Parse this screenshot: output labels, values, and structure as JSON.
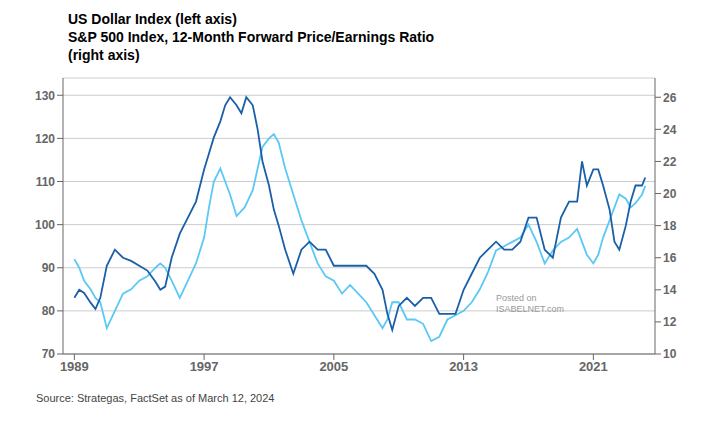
{
  "chart_data": {
    "type": "line",
    "title": [
      "US Dollar Index (left axis)",
      "S&P 500 Index, 12-Month Forward Price/Earnings Ratio",
      "(right axis)"
    ],
    "annotations": [
      "Posted on\nISABELNET.com",
      "Source: Strategas, FactSet as of March 12, 2024"
    ],
    "xlim": [
      1988.3,
      2024.8
    ],
    "xticks": [
      1989,
      1997,
      2005,
      2013,
      2021
    ],
    "ylim": [
      70,
      134
    ],
    "yticks": [
      70,
      80,
      90,
      100,
      110,
      120,
      130
    ],
    "y2lim": [
      10,
      27.2
    ],
    "y2ticks": [
      10,
      12,
      14,
      16,
      18,
      20,
      22,
      24,
      26
    ],
    "grid": true,
    "series": [
      {
        "axis": "y",
        "color": "#5bc8f5",
        "x": [
          1989.0,
          1989.3,
          1989.6,
          1990.0,
          1990.3,
          1990.6,
          1991.0,
          1991.5,
          1992.0,
          1992.5,
          1993.0,
          1993.5,
          1994.0,
          1994.3,
          1994.6,
          1995.0,
          1995.5,
          1996.0,
          1996.5,
          1997.0,
          1997.3,
          1997.6,
          1998.0,
          1998.3,
          1998.6,
          1999.0,
          1999.5,
          2000.0,
          2000.3,
          2000.6,
          2001.0,
          2001.3,
          2001.6,
          2002.0,
          2002.5,
          2003.0,
          2003.5,
          2004.0,
          2004.5,
          2005.0,
          2005.5,
          2006.0,
          2006.5,
          2007.0,
          2007.5,
          2008.0,
          2008.3,
          2008.6,
          2009.0,
          2009.5,
          2010.0,
          2010.5,
          2011.0,
          2011.5,
          2012.0,
          2012.5,
          2013.0,
          2013.5,
          2014.0,
          2014.5,
          2015.0,
          2015.5,
          2016.0,
          2016.5,
          2017.0,
          2017.5,
          2018.0,
          2018.5,
          2019.0,
          2019.5,
          2020.0,
          2020.3,
          2020.6,
          2021.0,
          2021.3,
          2021.6,
          2022.0,
          2022.3,
          2022.6,
          2023.0,
          2023.3,
          2023.6,
          2024.0,
          2024.2
        ],
        "values": [
          92,
          90,
          87,
          85,
          83,
          82,
          76,
          80,
          84,
          85,
          87,
          88,
          90,
          91,
          90,
          87,
          83,
          87,
          91,
          97,
          104,
          110,
          113,
          110,
          107,
          102,
          104,
          108,
          113,
          118,
          120,
          121,
          119,
          113,
          107,
          101,
          96,
          91,
          88,
          87,
          84,
          86,
          84,
          82,
          79,
          76,
          78,
          82,
          82,
          78,
          78,
          77,
          73,
          74,
          78,
          79,
          80,
          82,
          85,
          89,
          94,
          95,
          96,
          97,
          100,
          96,
          91,
          94,
          96,
          97,
          99,
          96,
          93,
          91,
          93,
          97,
          101,
          104,
          107,
          106,
          104,
          105,
          107,
          109
        ]
      },
      {
        "axis": "y2",
        "color": "#1a5fa8",
        "x": [
          1989.0,
          1989.3,
          1989.6,
          1990.0,
          1990.3,
          1990.6,
          1991.0,
          1991.5,
          1992.0,
          1992.5,
          1993.0,
          1993.5,
          1994.0,
          1994.3,
          1994.6,
          1995.0,
          1995.5,
          1996.0,
          1996.5,
          1997.0,
          1997.3,
          1997.6,
          1998.0,
          1998.3,
          1998.6,
          1999.0,
          1999.3,
          1999.6,
          2000.0,
          2000.3,
          2000.6,
          2001.0,
          2001.3,
          2001.6,
          2002.0,
          2002.5,
          2003.0,
          2003.5,
          2004.0,
          2004.5,
          2005.0,
          2005.5,
          2006.0,
          2006.5,
          2007.0,
          2007.5,
          2008.0,
          2008.3,
          2008.6,
          2009.0,
          2009.5,
          2010.0,
          2010.5,
          2011.0,
          2011.5,
          2012.0,
          2012.5,
          2013.0,
          2013.5,
          2014.0,
          2014.5,
          2015.0,
          2015.5,
          2016.0,
          2016.5,
          2017.0,
          2017.5,
          2018.0,
          2018.5,
          2019.0,
          2019.5,
          2020.0,
          2020.3,
          2020.6,
          2021.0,
          2021.3,
          2021.6,
          2022.0,
          2022.3,
          2022.6,
          2023.0,
          2023.3,
          2023.6,
          2024.0,
          2024.2
        ],
        "values": [
          13.5,
          14.0,
          13.8,
          13.2,
          12.8,
          13.5,
          15.5,
          16.5,
          16.0,
          15.8,
          15.5,
          15.2,
          14.5,
          14.0,
          14.2,
          16.0,
          17.5,
          18.5,
          19.5,
          21.5,
          22.5,
          23.5,
          24.5,
          25.5,
          26.0,
          25.5,
          25.0,
          26.0,
          25.5,
          24.0,
          22.0,
          20.5,
          19.0,
          18.0,
          16.5,
          15.0,
          16.5,
          17.0,
          16.5,
          16.5,
          15.5,
          15.5,
          15.5,
          15.5,
          15.5,
          15.0,
          14.0,
          12.5,
          11.5,
          13.0,
          13.5,
          13.0,
          13.5,
          13.5,
          12.5,
          12.5,
          12.5,
          14.0,
          15.0,
          16.0,
          16.5,
          17.0,
          16.5,
          16.5,
          17.0,
          18.5,
          18.5,
          16.5,
          16.0,
          18.5,
          19.5,
          19.5,
          22.0,
          20.5,
          21.5,
          21.5,
          20.5,
          19.0,
          17.0,
          16.5,
          18.0,
          19.5,
          20.5,
          20.5,
          21.0
        ]
      }
    ]
  }
}
